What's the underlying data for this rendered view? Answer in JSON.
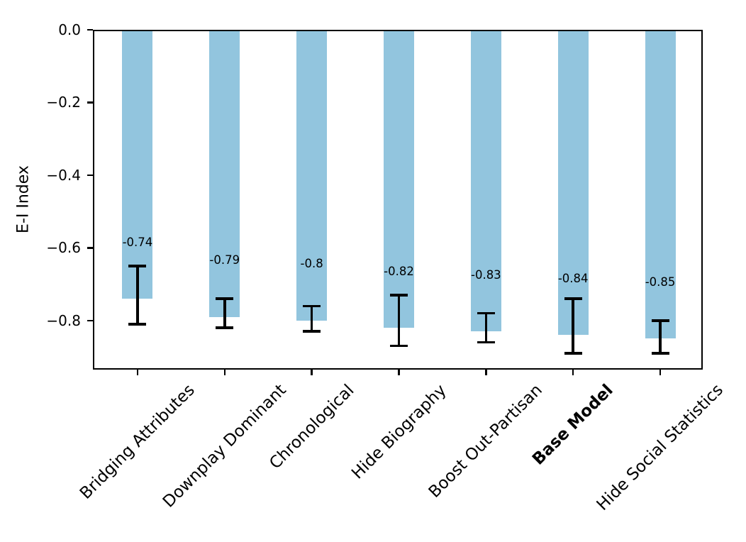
{
  "chart_data": {
    "type": "bar",
    "title": "",
    "xlabel": "",
    "ylabel": "E-I Index",
    "categories": [
      "Bridging Attributes",
      "Downplay Dominant",
      "Chronological",
      "Hide Biography",
      "Boost Out-Partisan",
      "Base Model",
      "Hide Social Statistics"
    ],
    "values": [
      -0.74,
      -0.79,
      -0.8,
      -0.82,
      -0.83,
      -0.84,
      -0.85
    ],
    "bar_labels": [
      "-0.74",
      "-0.79",
      "-0.8",
      "-0.82",
      "-0.83",
      "-0.84",
      "-0.85"
    ],
    "error_low": [
      -0.81,
      -0.82,
      -0.83,
      -0.87,
      -0.86,
      -0.89,
      -0.89
    ],
    "error_high": [
      -0.65,
      -0.74,
      -0.76,
      -0.73,
      -0.78,
      -0.74,
      -0.8
    ],
    "bold_category": "Base Model",
    "ylim": [
      -0.935,
      0.0
    ],
    "yticks": [
      0.0,
      -0.2,
      -0.4,
      -0.6,
      -0.8
    ],
    "ytick_labels": [
      "0.0",
      "−0.2",
      "−0.4",
      "−0.6",
      "−0.8"
    ],
    "x_label_rotation_deg": 45,
    "grid": false,
    "legend": null,
    "bar_color": "#92c5de",
    "error_color": "#000000",
    "axis_color": "#000000",
    "background_color": "#ffffff"
  }
}
